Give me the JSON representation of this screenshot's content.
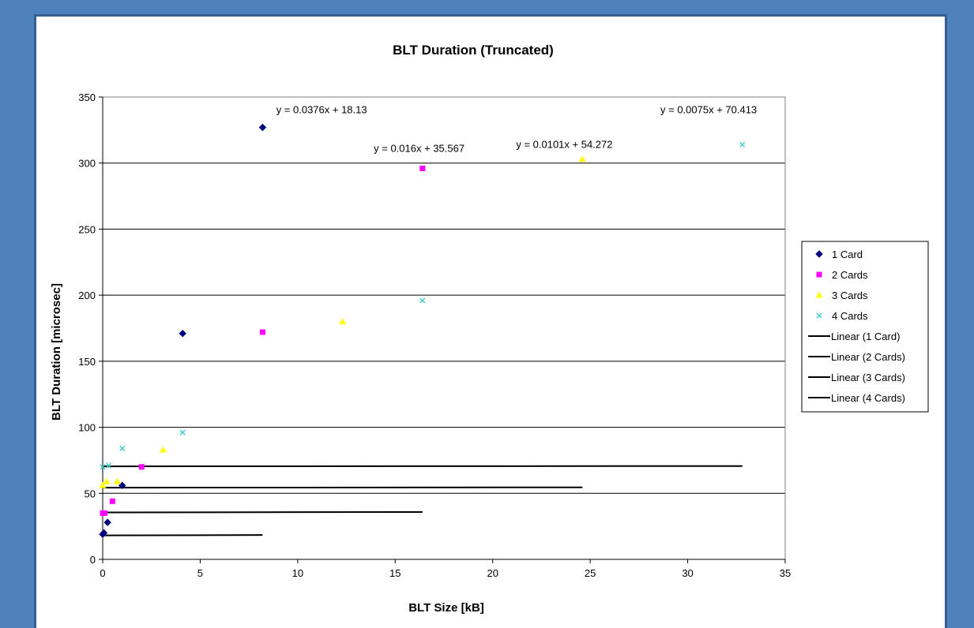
{
  "chart_data": {
    "type": "scatter",
    "title": "BLT Duration (Truncated)",
    "xlabel": "BLT Size [kB]",
    "ylabel": "BLT Duration [microsec]",
    "xlim": [
      0,
      35
    ],
    "ylim": [
      0,
      350
    ],
    "xticks": [
      0,
      5,
      10,
      15,
      20,
      25,
      30,
      35
    ],
    "yticks": [
      0,
      50,
      100,
      150,
      200,
      250,
      300,
      350
    ],
    "grid": "horizontal major gridlines",
    "legend_position": "right",
    "series": [
      {
        "name": "1 Card",
        "marker": "diamond",
        "color": "#000080",
        "points": [
          [
            0.0,
            19
          ],
          [
            0.06,
            20
          ],
          [
            0.25,
            28
          ],
          [
            1.0,
            56
          ],
          [
            4.1,
            171
          ],
          [
            8.2,
            327
          ]
        ]
      },
      {
        "name": "2 Cards",
        "marker": "square",
        "color": "#ff00ff",
        "points": [
          [
            0.0,
            35
          ],
          [
            0.1,
            35
          ],
          [
            0.5,
            44
          ],
          [
            2.0,
            70
          ],
          [
            8.2,
            172
          ],
          [
            16.4,
            296
          ]
        ]
      },
      {
        "name": "3 Cards",
        "marker": "triangle",
        "color": "#ffff00",
        "points": [
          [
            0.0,
            56
          ],
          [
            0.2,
            59
          ],
          [
            0.75,
            59
          ],
          [
            3.1,
            83
          ],
          [
            12.3,
            180
          ],
          [
            24.6,
            303
          ]
        ]
      },
      {
        "name": "4 Cards",
        "marker": "x",
        "color": "#33cccc",
        "points": [
          [
            0.0,
            70
          ],
          [
            0.3,
            71
          ],
          [
            1.0,
            84
          ],
          [
            4.1,
            96
          ],
          [
            16.4,
            196
          ],
          [
            32.8,
            314
          ]
        ]
      }
    ],
    "trendlines": [
      {
        "name": "Linear (1 Card)",
        "slope": 0.0376,
        "intercept": 18.13,
        "x_range": [
          0,
          8.2
        ],
        "equation": "y = 0.0376x + 18.13"
      },
      {
        "name": "Linear (2 Cards)",
        "slope": 0.016,
        "intercept": 35.567,
        "x_range": [
          0,
          16.4
        ],
        "equation": "y = 0.016x + 35.567"
      },
      {
        "name": "Linear (3 Cards)",
        "slope": 0.0101,
        "intercept": 54.272,
        "x_range": [
          0,
          24.6
        ],
        "equation": "y = 0.0101x + 54.272"
      },
      {
        "name": "Linear (4 Cards)",
        "slope": 0.0075,
        "intercept": 70.413,
        "x_range": [
          0,
          32.8
        ],
        "equation": "y = 0.0075x + 70.413"
      }
    ]
  }
}
